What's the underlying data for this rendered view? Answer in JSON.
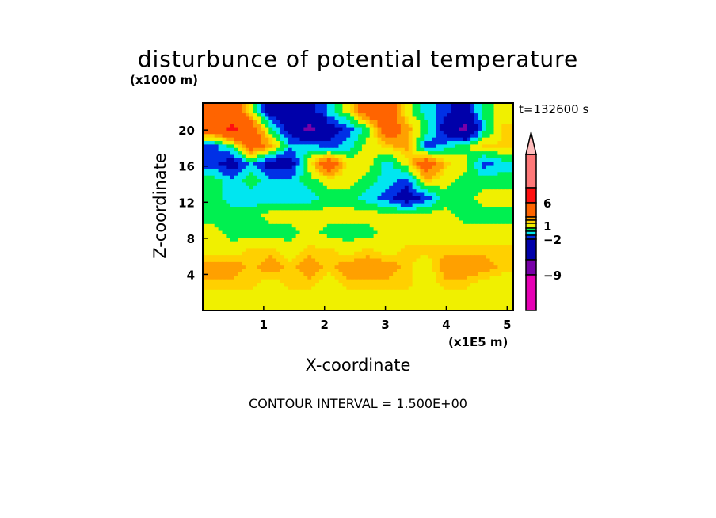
{
  "chart_data": {
    "type": "heatmap",
    "title": "disturbunce of potential temperature",
    "xlabel": "X-coordinate",
    "ylabel": "Z-coordinate",
    "x_unit": "(x1E5 m)",
    "y_unit": "(x1000 m)",
    "time_label": "t=132600 s",
    "footer": "CONTOUR INTERVAL = 1.500E+00",
    "xlim": [
      0,
      5.1
    ],
    "ylim": [
      0,
      23
    ],
    "x_ticks": [
      "1",
      "2",
      "3",
      "4",
      "5"
    ],
    "x_tick_values": [
      1,
      2,
      3,
      4,
      5
    ],
    "y_ticks": [
      "4",
      "8",
      "12",
      "16",
      "20"
    ],
    "y_tick_values": [
      4,
      8,
      12,
      16,
      20
    ],
    "levels": [
      -9,
      -6,
      -3,
      -2,
      -1,
      0,
      1,
      1.5,
      2.5,
      6,
      7.5,
      12
    ],
    "colors": [
      "#e600b4",
      "#7800a8",
      "#0000aa",
      "#0030e6",
      "#00e6f0",
      "#00f050",
      "#f0f000",
      "#ffd000",
      "#ffa000",
      "#ff6400",
      "#ff1010",
      "#ff7878",
      "#ffbcbc"
    ],
    "colorbar_labels": [
      {
        "text": "6",
        "value": 6
      },
      {
        "text": "1",
        "value": 1
      },
      {
        "text": "−2",
        "value": -2
      },
      {
        "text": "−9",
        "value": -9
      }
    ],
    "grid_rows_top_to_bottom": [
      [
        4,
        4,
        0.5,
        -4,
        -4,
        -4,
        -1.5,
        0.5,
        4,
        4,
        0.5,
        -1.5,
        -2.5,
        -4,
        -0.5,
        0.5
      ],
      [
        4,
        6.5,
        4,
        -0.5,
        -4,
        -7,
        -4,
        -2.5,
        -0.5,
        4,
        2,
        -0.5,
        -4,
        -7,
        -1.5,
        1.2
      ],
      [
        -2.5,
        -0.5,
        4,
        2,
        -1.5,
        -1.5,
        -2.5,
        -1.5,
        0.5,
        1.2,
        2,
        -2.5,
        -1.5,
        -0.5,
        1.2,
        1.2
      ],
      [
        -2.5,
        -4,
        -1.5,
        -4,
        -4,
        0.5,
        4,
        0.5,
        0.5,
        -1.5,
        0.5,
        4,
        1.2,
        0.5,
        -2.5,
        -1.5
      ],
      [
        -0.5,
        -1.5,
        -0.5,
        -1.5,
        -1.5,
        -0.5,
        0.5,
        0.5,
        -0.5,
        -1.5,
        -2.5,
        1.2,
        0.5,
        -0.5,
        -0.5,
        -0.5
      ],
      [
        -0.5,
        -1.5,
        -1.5,
        -1.5,
        -1.5,
        -1.5,
        -0.5,
        -0.5,
        -1.5,
        -2.5,
        -4,
        -2.5,
        -0.5,
        -0.5,
        0.5,
        0.5
      ],
      [
        -0.5,
        -0.5,
        -0.5,
        0.5,
        0.5,
        0.5,
        0.5,
        0.5,
        0.5,
        0.5,
        0.5,
        0.5,
        0.5,
        -0.5,
        -0.5,
        -0.5
      ],
      [
        0.5,
        -0.5,
        -0.5,
        -0.5,
        -0.5,
        0.5,
        -0.5,
        -0.5,
        -0.5,
        0.5,
        0.5,
        0.5,
        0.5,
        0.5,
        0.5,
        0.5
      ],
      [
        0.5,
        0.5,
        1.2,
        1.2,
        0.5,
        1.2,
        1.2,
        0.5,
        1.2,
        0.5,
        1.2,
        1.2,
        1.2,
        1.2,
        1.2,
        1.2
      ],
      [
        2,
        2,
        1.2,
        2,
        1.2,
        2,
        1.2,
        2,
        2,
        2,
        1.2,
        0.5,
        2,
        2,
        2,
        1.2
      ],
      [
        1.2,
        1.2,
        1.2,
        0.5,
        1.2,
        1.2,
        0.5,
        1.2,
        1.2,
        1.2,
        1.2,
        0.5,
        1.2,
        1.2,
        0.5,
        0.5
      ],
      [
        0.5,
        0.5,
        0.5,
        0.5,
        0.5,
        0.5,
        0.5,
        0.5,
        0.5,
        0.5,
        0.5,
        0.5,
        0.5,
        0.5,
        0.5,
        0.5
      ]
    ]
  }
}
